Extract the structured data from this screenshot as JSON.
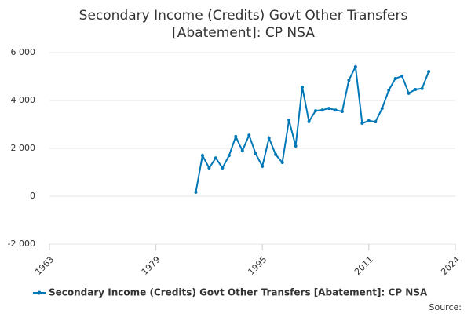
{
  "chart_data": {
    "type": "line",
    "title": "Secondary Income (Credits) Govt Other Transfers [Abatement]: CP NSA",
    "source": "Source:",
    "x": [
      1985,
      1986,
      1987,
      1988,
      1989,
      1990,
      1991,
      1992,
      1993,
      1994,
      1995,
      1996,
      1997,
      1998,
      1999,
      2000,
      2001,
      2002,
      2003,
      2004,
      2005,
      2006,
      2007,
      2008,
      2009,
      2010,
      2011,
      2012,
      2013,
      2014,
      2015,
      2016,
      2017,
      2018,
      2019,
      2020
    ],
    "series": [
      {
        "name": "Secondary Income (Credits) Govt Other Transfers [Abatement]: CP NSA",
        "color": "#0077b6",
        "values": [
          170,
          1700,
          1180,
          1600,
          1180,
          1700,
          2490,
          1900,
          2550,
          1770,
          1250,
          2430,
          1740,
          1410,
          3180,
          2100,
          4560,
          3120,
          3570,
          3600,
          3670,
          3600,
          3540,
          4850,
          5410,
          3050,
          3150,
          3110,
          3670,
          4430,
          4920,
          5020,
          4300,
          4460,
          4500,
          5210
        ]
      }
    ],
    "xlim": [
      1963,
      2024
    ],
    "xticks": [
      1963,
      1979,
      1995,
      2011,
      2024
    ],
    "ylim": [
      -2000,
      6000
    ],
    "yticks": [
      {
        "value": -2000,
        "label": "-2 000"
      },
      0,
      {
        "value": 2000,
        "label": "2 000"
      },
      {
        "value": 4000,
        "label": "4 000"
      },
      {
        "value": 6000,
        "label": "6 000"
      }
    ],
    "grid": true
  }
}
